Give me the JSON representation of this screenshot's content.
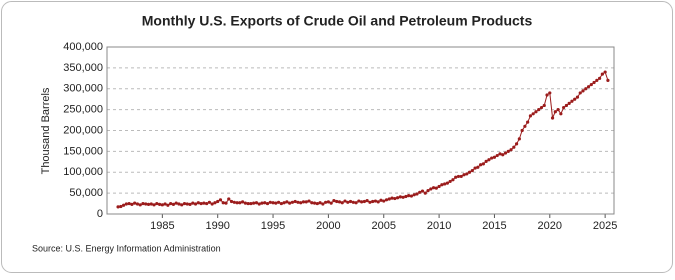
{
  "chart_data": {
    "type": "line",
    "title": "Monthly U.S. Exports of Crude Oil and Petroleum Products",
    "y_label": "Thousand Barrels",
    "source": "Source: U.S. Energy Information Administration",
    "xlim": [
      1980,
      2025.8
    ],
    "xticks": [
      1985,
      1990,
      1995,
      2000,
      2005,
      2010,
      2015,
      2020,
      2025
    ],
    "ylim": [
      0,
      400000
    ],
    "yticks": [
      {
        "value": 0,
        "label": "0"
      },
      {
        "value": 50000,
        "label": "50,000"
      },
      {
        "value": 100000,
        "label": "100,000"
      },
      {
        "value": 150000,
        "label": "150,000"
      },
      {
        "value": 200000,
        "label": "200,000"
      },
      {
        "value": 250000,
        "label": "250,000"
      },
      {
        "value": 300000,
        "label": "300,000"
      },
      {
        "value": 350000,
        "label": "350,000"
      },
      {
        "value": 400000,
        "label": "400,000"
      }
    ],
    "grid": true,
    "x": [
      1981,
      1981.25,
      1981.5,
      1981.75,
      1982,
      1982.25,
      1982.5,
      1982.75,
      1983,
      1983.25,
      1983.5,
      1983.75,
      1984,
      1984.25,
      1984.5,
      1984.75,
      1985,
      1985.25,
      1985.5,
      1985.75,
      1986,
      1986.25,
      1986.5,
      1986.75,
      1987,
      1987.25,
      1987.5,
      1987.75,
      1988,
      1988.25,
      1988.5,
      1988.75,
      1989,
      1989.25,
      1989.5,
      1989.75,
      1990,
      1990.25,
      1990.5,
      1990.75,
      1991,
      1991.25,
      1991.5,
      1991.75,
      1992,
      1992.25,
      1992.5,
      1992.75,
      1993,
      1993.25,
      1993.5,
      1993.75,
      1994,
      1994.25,
      1994.5,
      1994.75,
      1995,
      1995.25,
      1995.5,
      1995.75,
      1996,
      1996.25,
      1996.5,
      1996.75,
      1997,
      1997.25,
      1997.5,
      1997.75,
      1998,
      1998.25,
      1998.5,
      1998.75,
      1999,
      1999.25,
      1999.5,
      1999.75,
      2000,
      2000.25,
      2000.5,
      2000.75,
      2001,
      2001.25,
      2001.5,
      2001.75,
      2002,
      2002.25,
      2002.5,
      2002.75,
      2003,
      2003.25,
      2003.5,
      2003.75,
      2004,
      2004.25,
      2004.5,
      2004.75,
      2005,
      2005.25,
      2005.5,
      2005.75,
      2006,
      2006.25,
      2006.5,
      2006.75,
      2007,
      2007.25,
      2007.5,
      2007.75,
      2008,
      2008.25,
      2008.5,
      2008.75,
      2009,
      2009.25,
      2009.5,
      2009.75,
      2010,
      2010.25,
      2010.5,
      2010.75,
      2011,
      2011.25,
      2011.5,
      2011.75,
      2012,
      2012.25,
      2012.5,
      2012.75,
      2013,
      2013.25,
      2013.5,
      2013.75,
      2014,
      2014.25,
      2014.5,
      2014.75,
      2015,
      2015.25,
      2015.5,
      2015.75,
      2016,
      2016.25,
      2016.5,
      2016.75,
      2017,
      2017.25,
      2017.5,
      2017.75,
      2018,
      2018.25,
      2018.5,
      2018.75,
      2019,
      2019.25,
      2019.5,
      2019.75,
      2020,
      2020.25,
      2020.5,
      2020.75,
      2021,
      2021.25,
      2021.5,
      2021.75,
      2022,
      2022.25,
      2022.5,
      2022.75,
      2023,
      2023.25,
      2023.5,
      2023.75,
      2024,
      2024.25,
      2024.5,
      2024.75,
      2025,
      2025.25
    ],
    "series": [
      {
        "name": "Exports",
        "color": "#9b1c1c",
        "values": [
          17000,
          18000,
          21000,
          24000,
          25000,
          23000,
          26000,
          24000,
          22000,
          25000,
          24000,
          23000,
          24000,
          22000,
          25000,
          23000,
          22000,
          24000,
          21000,
          25000,
          23000,
          26000,
          24000,
          22000,
          25000,
          24000,
          23000,
          26000,
          24000,
          27000,
          25000,
          26000,
          25000,
          28000,
          24000,
          27000,
          30000,
          34000,
          27000,
          26000,
          36000,
          30000,
          28000,
          27000,
          27000,
          29000,
          26000,
          25000,
          25000,
          26000,
          27000,
          24000,
          26000,
          27000,
          25000,
          28000,
          27000,
          26000,
          28000,
          25000,
          27000,
          29000,
          26000,
          28000,
          30000,
          28000,
          27000,
          29000,
          29000,
          31000,
          27000,
          26000,
          25000,
          27000,
          24000,
          28000,
          29000,
          26000,
          32000,
          30000,
          29000,
          27000,
          31000,
          28000,
          30000,
          28000,
          27000,
          31000,
          29000,
          30000,
          32000,
          28000,
          30000,
          31000,
          29000,
          33000,
          31000,
          34000,
          36000,
          38000,
          37000,
          39000,
          41000,
          40000,
          42000,
          44000,
          43000,
          46000,
          48000,
          52000,
          55000,
          50000,
          56000,
          60000,
          63000,
          62000,
          66000,
          70000,
          72000,
          74000,
          78000,
          82000,
          88000,
          90000,
          90000,
          94000,
          96000,
          100000,
          104000,
          110000,
          112000,
          118000,
          120000,
          126000,
          130000,
          134000,
          136000,
          140000,
          144000,
          142000,
          146000,
          150000,
          154000,
          160000,
          168000,
          180000,
          200000,
          210000,
          220000,
          235000,
          240000,
          245000,
          250000,
          255000,
          260000,
          285000,
          290000,
          230000,
          245000,
          250000,
          240000,
          255000,
          260000,
          265000,
          270000,
          275000,
          280000,
          290000,
          295000,
          300000,
          305000,
          310000,
          315000,
          320000,
          325000,
          335000,
          340000,
          320000
        ]
      }
    ]
  }
}
